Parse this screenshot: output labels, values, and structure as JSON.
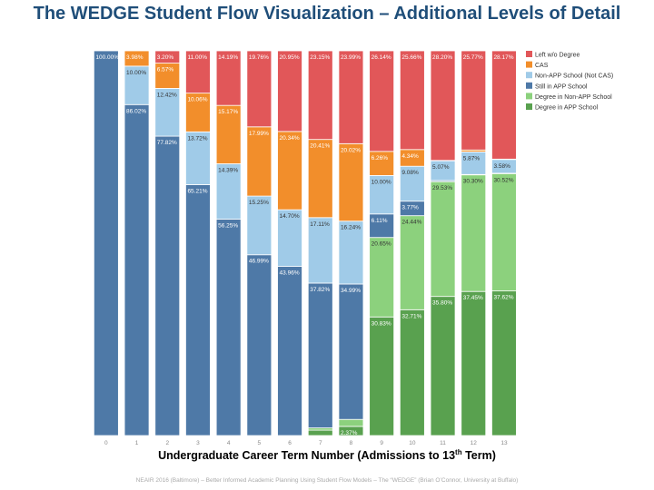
{
  "title": "The WEDGE Student Flow Visualization – Additional Levels of Detail",
  "xaxis": {
    "text": "Undergraduate Career Term Number (Admissions to 13",
    "sup": "th",
    "suffix": " Term)"
  },
  "footer": "NEAIR 2016 (Baltimore) – Better Informed Academic Planning Using Student Flow Models – The “WEDGE” (Brian O’Connor, University at Buffalo)",
  "chart_data": {
    "type": "bar",
    "stacked": true,
    "normalized_percent": true,
    "categories": [
      "0",
      "1",
      "2",
      "3",
      "4",
      "5",
      "6",
      "7",
      "8",
      "9",
      "10",
      "11",
      "12",
      "13"
    ],
    "ylim": [
      0,
      100
    ],
    "legend_position": "top-right",
    "series": [
      {
        "name": "Degree in APP School",
        "color": "#59a14f",
        "values": [
          0,
          0,
          0,
          0,
          0,
          0,
          0,
          1.4,
          2.37,
          30.83,
          32.71,
          35.8,
          37.45,
          37.62
        ],
        "labels": [
          "",
          "",
          "",
          "",
          "",
          "",
          "",
          "",
          "2.37%",
          "30.83%",
          "32.71%",
          "35.80%",
          "37.45%",
          "37.62%"
        ]
      },
      {
        "name": "Degree in Non-APP School",
        "color": "#8cd17d",
        "values": [
          0,
          0,
          0,
          0,
          0,
          0,
          0,
          0.6,
          1.8,
          20.65,
          24.44,
          29.53,
          30.3,
          30.52
        ],
        "labels": [
          "",
          "",
          "",
          "",
          "",
          "",
          "",
          "",
          "",
          "20.65%",
          "24.44%",
          "29.53%",
          "30.30%",
          "30.52%"
        ]
      },
      {
        "name": "Still in APP School",
        "color": "#4e79a7",
        "values": [
          100,
          86.02,
          77.82,
          65.21,
          56.25,
          46.99,
          43.96,
          37.82,
          34.99,
          6.11,
          3.77,
          0.3,
          0.1,
          0.1
        ],
        "labels": [
          "100.00%",
          "86.02%",
          "77.82%",
          "65.21%",
          "56.25%",
          "46.99%",
          "43.96%",
          "37.82%",
          "34.99%",
          "6.11%",
          "3.77%",
          "",
          "",
          ""
        ]
      },
      {
        "name": "Non-APP School (Not CAS)",
        "color": "#a0cbe8",
        "values": [
          0,
          10.0,
          12.42,
          13.72,
          14.39,
          15.25,
          14.7,
          17.11,
          16.24,
          10.0,
          9.08,
          5.07,
          5.87,
          3.58
        ],
        "labels": [
          "",
          "10.00%",
          "12.42%",
          "13.72%",
          "14.39%",
          "15.25%",
          "14.70%",
          "17.11%",
          "16.24%",
          "10.00%",
          "9.08%",
          "5.07%",
          "5.87%",
          "3.58%"
        ]
      },
      {
        "name": "CAS",
        "color": "#f28e2b",
        "values": [
          0,
          3.98,
          6.57,
          10.06,
          15.17,
          17.99,
          20.34,
          20.41,
          20.02,
          6.26,
          4.34,
          0.1,
          0.5,
          0.1
        ],
        "labels": [
          "",
          "3.98%",
          "6.57%",
          "10.06%",
          "15.17%",
          "17.99%",
          "20.34%",
          "20.41%",
          "20.02%",
          "6.26%",
          "4.34%",
          "",
          "",
          ""
        ]
      },
      {
        "name": "Left w/o Degree",
        "color": "#e15759",
        "values": [
          0,
          0,
          3.2,
          11.0,
          14.19,
          19.76,
          20.95,
          23.15,
          23.99,
          26.14,
          25.66,
          28.2,
          25.77,
          28.17
        ],
        "labels": [
          "",
          "",
          "3.20%",
          "11.00%",
          "14.19%",
          "19.76%",
          "20.95%",
          "23.15%",
          "23.99%",
          "26.14%",
          "25.66%",
          "28.20%",
          "25.77%",
          "28.17%"
        ]
      }
    ]
  }
}
